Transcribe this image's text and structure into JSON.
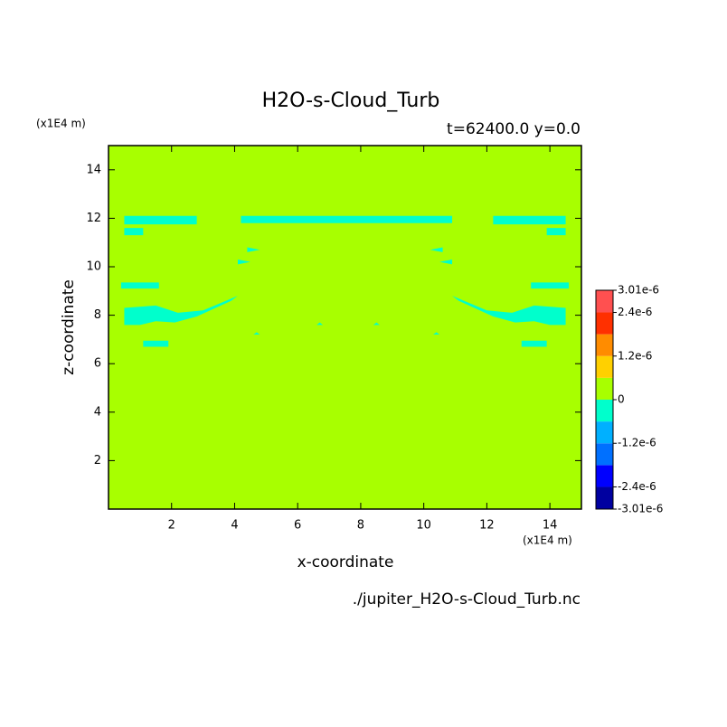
{
  "chart_data": {
    "type": "contour",
    "title": "H2O-s-Cloud_Turb",
    "subtitle": "t=62400.0 y=0.0",
    "x_label": "x-coordinate",
    "y_label": "z-coordinate",
    "x_unit": "(x1E4 m)",
    "y_unit": "(x1E4 m)",
    "footer": "./jupiter_H2O-s-Cloud_Turb.nc",
    "xlim": [
      0,
      15
    ],
    "ylim": [
      0,
      15
    ],
    "xticks": [
      2,
      4,
      6,
      8,
      10,
      12,
      14
    ],
    "yticks": [
      2,
      4,
      6,
      8,
      10,
      12,
      14
    ],
    "background_color": "#a8ff00",
    "regions": [
      {
        "color": "#00ffcc",
        "x": [
          4.2,
          10.9,
          10.9,
          4.2
        ],
        "z": [
          11.8,
          11.8,
          12.1,
          12.1
        ]
      },
      {
        "color": "#00ffcc",
        "x": [
          0.5,
          2.8,
          2.8,
          0.5
        ],
        "z": [
          11.75,
          11.75,
          12.1,
          12.1
        ]
      },
      {
        "color": "#00ffcc",
        "x": [
          12.2,
          14.5,
          14.5,
          12.2
        ],
        "z": [
          11.75,
          11.75,
          12.1,
          12.1
        ]
      },
      {
        "color": "#00ffcc",
        "x": [
          0.5,
          1.1,
          1.1,
          0.5
        ],
        "z": [
          11.3,
          11.3,
          11.6,
          11.6
        ]
      },
      {
        "color": "#00ffcc",
        "x": [
          13.9,
          14.5,
          14.5,
          13.9
        ],
        "z": [
          11.3,
          11.3,
          11.6,
          11.6
        ]
      },
      {
        "color": "#00ffcc",
        "x": [
          4.4,
          4.8,
          4.4
        ],
        "z": [
          10.6,
          10.7,
          10.8
        ]
      },
      {
        "color": "#00ffcc",
        "x": [
          4.1,
          4.5,
          4.1
        ],
        "z": [
          10.1,
          10.2,
          10.3
        ]
      },
      {
        "color": "#00ffcc",
        "x": [
          10.6,
          10.2,
          10.6
        ],
        "z": [
          10.6,
          10.7,
          10.8
        ]
      },
      {
        "color": "#00ffcc",
        "x": [
          10.9,
          10.5,
          10.9
        ],
        "z": [
          10.1,
          10.2,
          10.3
        ]
      },
      {
        "color": "#00ffcc",
        "x": [
          0.4,
          1.6,
          1.6,
          0.4
        ],
        "z": [
          9.1,
          9.1,
          9.35,
          9.35
        ]
      },
      {
        "color": "#00ffcc",
        "x": [
          13.4,
          14.6,
          14.6,
          13.4
        ],
        "z": [
          9.1,
          9.1,
          9.35,
          9.35
        ]
      },
      {
        "color": "#00ffcc",
        "x": [
          0.5,
          0.5,
          1.5,
          2.2,
          3.0,
          4.1,
          3.9,
          2.8,
          2.1,
          1.5,
          1.0
        ],
        "z": [
          7.6,
          8.3,
          8.4,
          8.1,
          8.2,
          8.8,
          8.6,
          7.95,
          7.7,
          7.75,
          7.6
        ]
      },
      {
        "color": "#00ffcc",
        "x": [
          14.5,
          14.5,
          13.5,
          12.8,
          12.0,
          10.9,
          11.1,
          12.2,
          12.9,
          13.5,
          14.0
        ],
        "z": [
          7.6,
          8.3,
          8.4,
          8.1,
          8.2,
          8.8,
          8.6,
          7.95,
          7.7,
          7.75,
          7.6
        ]
      },
      {
        "color": "#00ffcc",
        "x": [
          1.1,
          1.9,
          1.9,
          1.1
        ],
        "z": [
          6.7,
          6.7,
          6.95,
          6.95
        ]
      },
      {
        "color": "#00ffcc",
        "x": [
          13.1,
          13.9,
          13.9,
          13.1
        ],
        "z": [
          6.7,
          6.7,
          6.95,
          6.95
        ]
      },
      {
        "color": "#00ffcc",
        "x": [
          4.6,
          4.8,
          4.7
        ],
        "z": [
          7.2,
          7.2,
          7.3
        ]
      },
      {
        "color": "#00ffcc",
        "x": [
          6.6,
          6.8,
          6.7
        ],
        "z": [
          7.6,
          7.6,
          7.7
        ]
      },
      {
        "color": "#00ffcc",
        "x": [
          8.4,
          8.6,
          8.5
        ],
        "z": [
          7.6,
          7.6,
          7.7
        ]
      },
      {
        "color": "#00ffcc",
        "x": [
          10.3,
          10.5,
          10.4
        ],
        "z": [
          7.2,
          7.2,
          7.3
        ]
      }
    ],
    "colorbar": {
      "levels": [
        -3.01e-06,
        -2.4e-06,
        -1.8e-06,
        -1.2e-06,
        -6e-07,
        0,
        6e-07,
        1.2e-06,
        1.8e-06,
        2.4e-06,
        3.01e-06
      ],
      "colors": [
        "#0000a0",
        "#0000ff",
        "#0070ff",
        "#00b0ff",
        "#00ffcc",
        "#a8ff00",
        "#ffd000",
        "#ff8c00",
        "#ff3000",
        "#ff5050"
      ],
      "ticks": [
        {
          "value": 3.01e-06,
          "label": "3.01e-6"
        },
        {
          "value": 2.4e-06,
          "label": "2.4e-6"
        },
        {
          "value": 1.2e-06,
          "label": "1.2e-6"
        },
        0,
        {
          "value": -1.2e-06,
          "label": "-1.2e-6"
        },
        {
          "value": -2.4e-06,
          "label": "-2.4e-6"
        },
        {
          "value": -3.01e-06,
          "label": "-3.01e-6"
        }
      ]
    }
  }
}
